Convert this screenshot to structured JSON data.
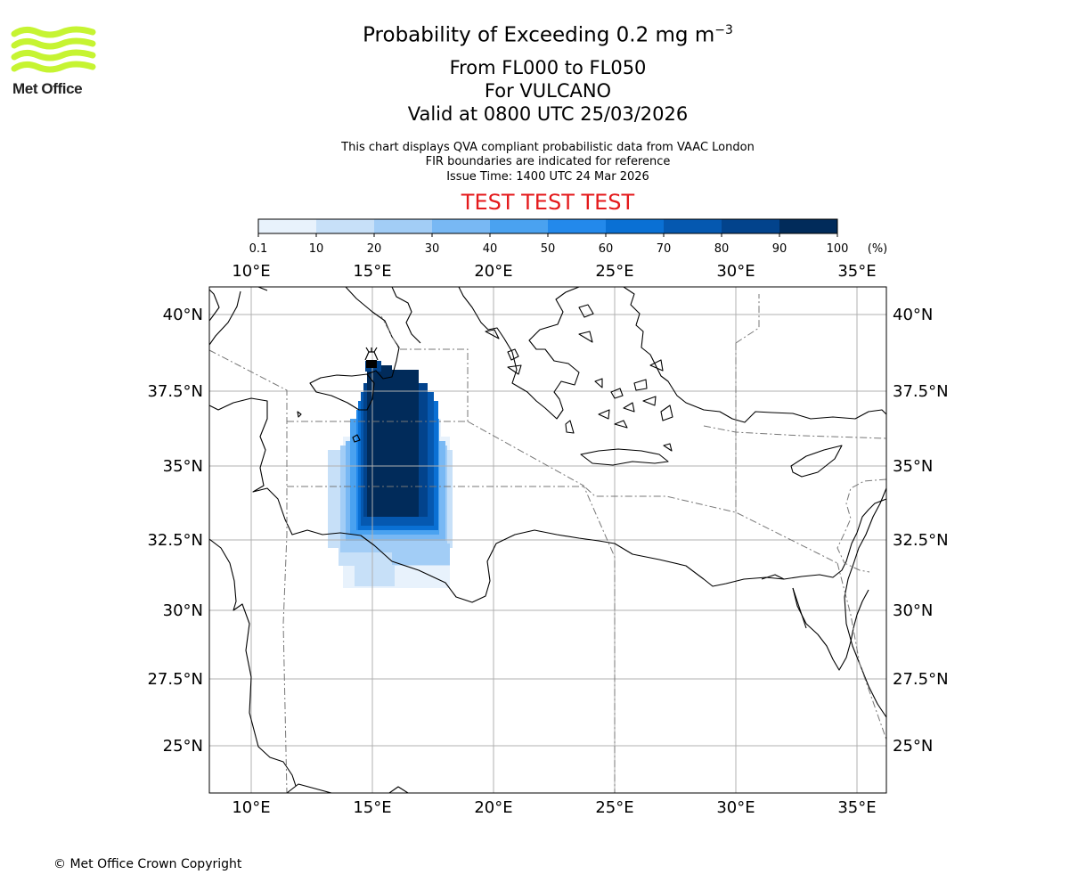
{
  "logo": {
    "text": "Met Office",
    "color": "#c6f432"
  },
  "title": {
    "main": "Probability of Exceeding 0.2 mg m",
    "main_sup": "−3",
    "levels": "From FL000 to FL050",
    "volcano": "For VULCANO",
    "valid": "Valid at 0800 UTC 25/03/2026"
  },
  "subtitle": {
    "line1": "This chart displays QVA compliant probabilistic data from VAAC London",
    "line2": "FIR boundaries are indicated for reference",
    "line3": "Issue Time: 1400 UTC 24 Mar 2026"
  },
  "test_banner": {
    "text": "TEST TEST TEST",
    "color": "#e41a1c"
  },
  "colorbar": {
    "unit": "(%)",
    "ticks": [
      "0.1",
      "10",
      "20",
      "30",
      "40",
      "50",
      "60",
      "70",
      "80",
      "90",
      "100"
    ],
    "colors": [
      "#e8f2fc",
      "#c7e0f8",
      "#a2cdf6",
      "#78b8f4",
      "#4aa2f0",
      "#2389eb",
      "#0a70d4",
      "#0558b0",
      "#02438c",
      "#012b5a"
    ]
  },
  "map": {
    "lon_labels": [
      "10°E",
      "15°E",
      "20°E",
      "25°E",
      "30°E",
      "35°E"
    ],
    "lat_labels": [
      "40°N",
      "37.5°N",
      "35°N",
      "32.5°N",
      "30°N",
      "27.5°N",
      "25°N"
    ],
    "volcano_symbol": "volcano-icon"
  },
  "footer": {
    "copyright": "© Met Office Crown Copyright"
  }
}
